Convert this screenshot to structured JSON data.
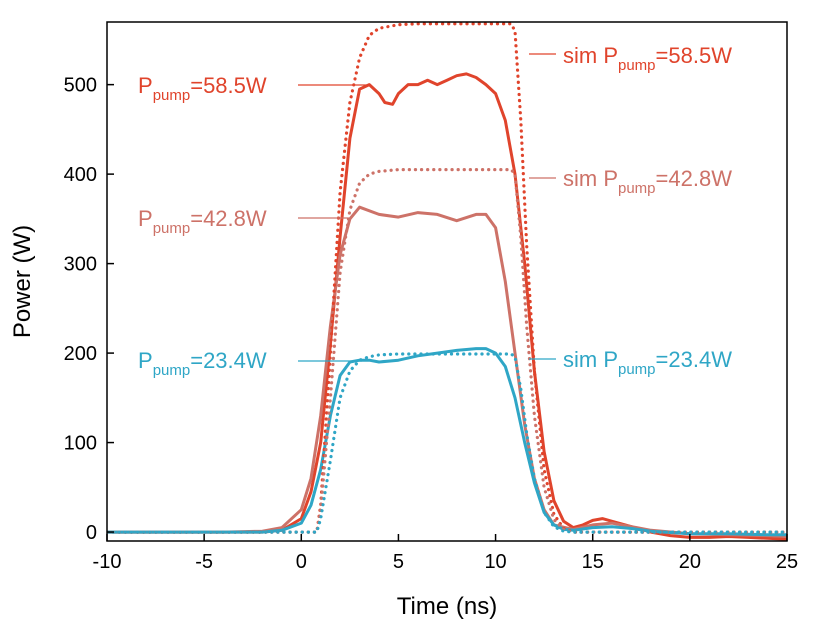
{
  "chart_data": {
    "type": "line",
    "xlabel": "Time (ns)",
    "ylabel": "Power (W)",
    "xlim": [
      -10,
      25
    ],
    "ylim": [
      -10,
      570
    ],
    "xticks": [
      -10,
      -5,
      0,
      5,
      10,
      15,
      20,
      25
    ],
    "yticks": [
      0,
      100,
      200,
      300,
      400,
      500
    ],
    "grid": false,
    "colors": {
      "p58": "#e0442c",
      "p42": "#cd7268",
      "p23": "#2fa6c6"
    },
    "series": [
      {
        "key": "p58",
        "style": "solid",
        "x": [
          -10,
          -8,
          -6,
          -4,
          -2,
          -1,
          0,
          0.5,
          1,
          1.5,
          2,
          2.5,
          3,
          3.5,
          4,
          4.3,
          4.7,
          5,
          5.5,
          6,
          6.5,
          7,
          7.5,
          8,
          8.5,
          9,
          9.5,
          10,
          10.5,
          11,
          11.5,
          12,
          12.5,
          13,
          13.5,
          14,
          14.5,
          15,
          15.5,
          16,
          17,
          18,
          19,
          20,
          21,
          22,
          23,
          24,
          25
        ],
        "y": [
          0,
          0,
          0,
          0,
          0,
          2,
          15,
          45,
          100,
          210,
          330,
          440,
          495,
          500,
          490,
          480,
          478,
          490,
          500,
          500,
          505,
          500,
          505,
          510,
          512,
          508,
          500,
          490,
          460,
          400,
          300,
          180,
          90,
          35,
          12,
          5,
          8,
          13,
          15,
          12,
          6,
          0,
          -4,
          -6,
          -6,
          -5,
          -6,
          -7,
          -8
        ]
      },
      {
        "key": "p42",
        "style": "solid",
        "x": [
          -10,
          -8,
          -6,
          -4,
          -2,
          -1,
          0,
          0.5,
          1,
          1.5,
          2,
          2.5,
          3,
          4,
          5,
          6,
          7,
          8,
          9,
          9.5,
          10,
          10.5,
          11,
          11.5,
          12,
          12.5,
          13,
          14,
          15,
          16,
          17,
          18,
          20,
          22,
          24,
          25
        ],
        "y": [
          0,
          0,
          0,
          0,
          1,
          5,
          25,
          60,
          130,
          230,
          310,
          350,
          363,
          355,
          352,
          357,
          355,
          348,
          355,
          355,
          340,
          280,
          200,
          120,
          60,
          25,
          8,
          3,
          8,
          10,
          6,
          2,
          -2,
          -3,
          -4,
          -5
        ]
      },
      {
        "key": "p23",
        "style": "solid",
        "x": [
          -10,
          -8,
          -6,
          -4,
          -2,
          -1,
          0,
          0.5,
          1,
          1.5,
          2,
          2.5,
          3,
          3.5,
          4,
          5,
          6,
          7,
          8,
          9,
          9.5,
          10,
          10.5,
          11,
          11.5,
          12,
          12.5,
          13,
          13.5,
          14,
          15,
          16,
          17,
          18,
          20,
          22,
          24,
          25
        ],
        "y": [
          0,
          0,
          0,
          0,
          0,
          2,
          10,
          30,
          70,
          130,
          175,
          190,
          192,
          192,
          190,
          192,
          197,
          200,
          203,
          205,
          205,
          200,
          185,
          150,
          100,
          55,
          22,
          8,
          3,
          2,
          5,
          6,
          4,
          1,
          -2,
          -2,
          -3,
          -3
        ]
      },
      {
        "key": "p58",
        "style": "dotted",
        "x": [
          -10,
          0,
          0.8,
          1,
          1.5,
          2,
          2.5,
          3,
          3.5,
          4,
          5,
          6,
          8,
          10,
          10.8,
          11,
          11.3,
          11.6,
          12,
          12.5,
          13,
          13.5,
          14,
          14.5,
          15,
          16,
          18,
          20,
          25
        ],
        "y": [
          0,
          0,
          0,
          30,
          200,
          380,
          480,
          530,
          555,
          563,
          567,
          568,
          568,
          568,
          568,
          560,
          460,
          320,
          180,
          70,
          20,
          4,
          0,
          0,
          0,
          0,
          0,
          0,
          0
        ]
      },
      {
        "key": "p42",
        "style": "dotted",
        "x": [
          -10,
          0,
          0.8,
          1,
          1.5,
          2,
          2.5,
          3,
          3.5,
          4,
          5,
          6,
          8,
          10,
          10.8,
          11,
          11.3,
          11.6,
          12,
          12.5,
          13,
          13.5,
          14,
          14.5,
          15,
          16,
          18,
          20,
          25
        ],
        "y": [
          0,
          0,
          0,
          25,
          150,
          290,
          360,
          390,
          400,
          403,
          405,
          405,
          405,
          405,
          405,
          400,
          330,
          230,
          130,
          50,
          14,
          3,
          0,
          0,
          0,
          0,
          0,
          0,
          0
        ]
      },
      {
        "key": "p23",
        "style": "dotted",
        "x": [
          -10,
          0,
          0.8,
          1,
          1.5,
          2,
          2.5,
          3,
          3.5,
          4,
          5,
          6,
          8,
          10,
          10.8,
          11,
          11.3,
          11.6,
          12,
          12.5,
          13,
          13.5,
          14,
          14.5,
          15,
          16,
          18,
          20,
          25
        ],
        "y": [
          0,
          0,
          0,
          15,
          80,
          150,
          180,
          192,
          196,
          198,
          199,
          199,
          199,
          199,
          199,
          196,
          160,
          110,
          60,
          22,
          6,
          1,
          0,
          0,
          0,
          0,
          0,
          0,
          0
        ]
      }
    ],
    "annotations": [
      {
        "key": "p58",
        "text_main": "P",
        "text_sub": "pump",
        "text_rest": "=58.5W"
      },
      {
        "key": "p42",
        "text_main": "P",
        "text_sub": "pump",
        "text_rest": "=42.8W"
      },
      {
        "key": "p23",
        "text_main": "P",
        "text_sub": "pump",
        "text_rest": "=23.4W"
      },
      {
        "key": "p58",
        "text_main": "sim P",
        "text_sub": "pump",
        "text_rest": "=58.5W"
      },
      {
        "key": "p42",
        "text_main": "sim P",
        "text_sub": "pump",
        "text_rest": "=42.8W"
      },
      {
        "key": "p23",
        "text_main": "sim P",
        "text_sub": "pump",
        "text_rest": "=23.4W"
      }
    ]
  }
}
